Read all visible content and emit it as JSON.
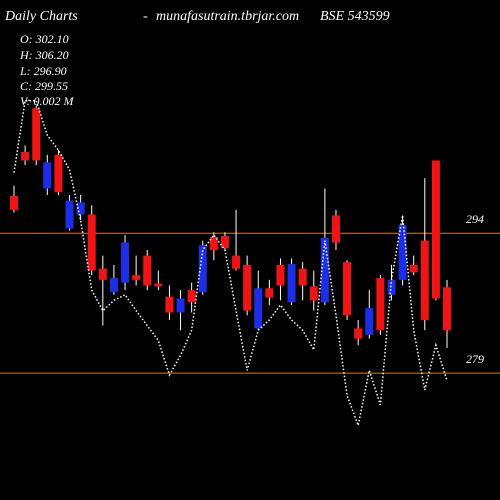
{
  "chart_data": {
    "type": "candlestick",
    "title": "Daily Charts",
    "separator": "-",
    "site": "munafasutrain.tbrjar.com",
    "symbol": "BSE 543599",
    "info": [
      "O: 302.10",
      "H: 306.20",
      "L: 296.90",
      "C: 299.55",
      "V: 0.002  M"
    ],
    "open": [
      298.0,
      302.7,
      307.4,
      298.8,
      302.4,
      294.5,
      296.0,
      296.0,
      290.2,
      287.7,
      288.7,
      289.5,
      291.6,
      288.6,
      287.2,
      285.5,
      287.9,
      287.7,
      293.6,
      293.7,
      291.6,
      290.6,
      283.8,
      288.1,
      290.6,
      286.6,
      290.2,
      288.3,
      286.6,
      295.9,
      290.9,
      283.8,
      283.1,
      289.2,
      287.4,
      289.0,
      290.6,
      293.2,
      301.8,
      288.2
    ],
    "high": [
      299.1,
      303.4,
      307.7,
      302.4,
      302.9,
      298.1,
      298.1,
      297.0,
      291.6,
      290.6,
      293.8,
      291.6,
      292.2,
      290.0,
      288.4,
      287.9,
      288.7,
      293.2,
      294.1,
      294.1,
      296.5,
      291.6,
      290.0,
      289.0,
      291.3,
      291.3,
      290.9,
      290.0,
      298.8,
      296.5,
      291.1,
      284.7,
      287.9,
      289.5,
      290.6,
      295.9,
      291.6,
      299.9,
      301.8,
      289.0
    ],
    "low": [
      296.2,
      301.3,
      301.3,
      298.1,
      298.1,
      294.3,
      295.4,
      289.5,
      284.1,
      287.4,
      287.9,
      288.4,
      287.9,
      287.9,
      284.7,
      283.6,
      285.5,
      287.4,
      291.1,
      292.2,
      290.0,
      285.2,
      283.6,
      286.3,
      286.8,
      286.3,
      286.8,
      285.7,
      286.3,
      292.2,
      284.7,
      282.0,
      282.7,
      283.1,
      286.8,
      288.4,
      289.5,
      283.6,
      286.8,
      281.7
    ],
    "close": [
      296.5,
      301.8,
      301.8,
      301.6,
      298.4,
      297.5,
      297.3,
      290.0,
      289.0,
      289.2,
      293.0,
      289.0,
      288.4,
      288.3,
      285.5,
      287.0,
      286.6,
      292.7,
      292.2,
      292.4,
      290.2,
      285.7,
      288.1,
      287.1,
      288.4,
      290.7,
      288.4,
      286.8,
      293.5,
      293.0,
      285.2,
      282.7,
      286.0,
      283.6,
      289.0,
      294.9,
      289.8,
      284.7,
      287.0,
      283.6
    ],
    "line": [
      300.5,
      308.2,
      308.2,
      304.5,
      302.9,
      300.8,
      295.4,
      287.9,
      285.7,
      286.8,
      287.4,
      285.7,
      284.1,
      282.5,
      278.8,
      280.9,
      283.6,
      292.2,
      293.8,
      292.2,
      285.7,
      279.3,
      283.6,
      284.7,
      286.3,
      284.7,
      283.6,
      281.5,
      293.2,
      285.2,
      276.6,
      273.4,
      279.3,
      275.6,
      289.0,
      295.9,
      283.6,
      277.2,
      282.0,
      278.2
    ],
    "ylim": [
      265.4,
      319.0
    ],
    "yticks": [
      294,
      279
    ],
    "up_color": "#1c2ee8",
    "down_color": "#f01414",
    "wick_color": "#ffffff",
    "line_color": "#ffffff",
    "grid_color": "#d97a1c"
  }
}
